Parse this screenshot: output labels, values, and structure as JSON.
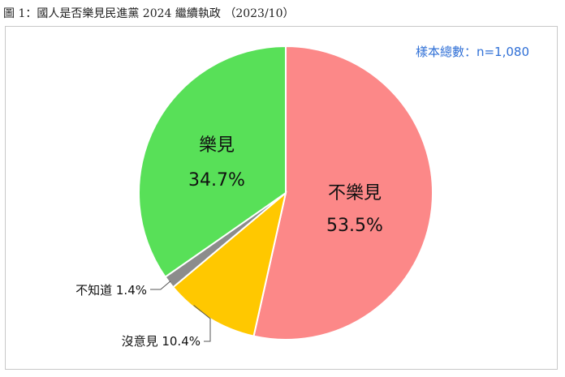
{
  "caption": "圖 1：國人是否樂見民進黨 2024 繼續執政 （2023/10）",
  "sample_size": "樣本總數：n=1,080",
  "chart_data": {
    "type": "pie",
    "title": "國人是否樂見民進黨 2024 繼續執政",
    "slices": [
      {
        "label": "不樂見",
        "value": 53.5,
        "display": "53.5%",
        "color": "#fc8888"
      },
      {
        "label": "沒意見",
        "value": 10.4,
        "display": "10.4%",
        "color": "#ffc800"
      },
      {
        "label": "不知道",
        "value": 1.4,
        "display": "1.4%",
        "color": "#8c8c8c"
      },
      {
        "label": "樂見",
        "value": 34.7,
        "display": "34.7%",
        "color": "#58e058"
      }
    ],
    "start_angle_deg": 0,
    "direction": "clockwise",
    "legend": "none"
  }
}
